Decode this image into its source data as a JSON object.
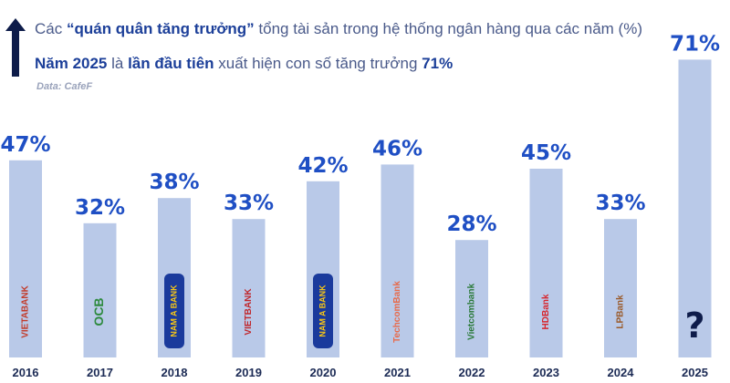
{
  "header": {
    "line1_prefix": "Các ",
    "line1_bold": "“quán quân tăng trưởng”",
    "line1_suffix": " tổng tài sản trong hệ thống ngân hàng qua các năm (%)",
    "line2_prefix": "Năm 2025",
    "line2_mid": " là ",
    "line2_bold": "lần đầu tiên",
    "line2_suffix": " xuất hiện con số tăng trưởng ",
    "line2_value": "71%",
    "source": "Data: CafeF"
  },
  "chart_data": {
    "type": "bar",
    "title": "Các “quán quân tăng trưởng” tổng tài sản trong hệ thống ngân hàng qua các năm (%)",
    "categories": [
      "2016",
      "2017",
      "2018",
      "2019",
      "2020",
      "2021",
      "2022",
      "2023",
      "2024",
      "2025"
    ],
    "values": [
      47,
      32,
      38,
      33,
      42,
      46,
      28,
      45,
      33,
      71
    ],
    "value_labels": [
      "47%",
      "32%",
      "38%",
      "33%",
      "42%",
      "46%",
      "28%",
      "45%",
      "33%",
      "71%"
    ],
    "banks": [
      "VIETABANK",
      "OCB",
      "NAM A BANK",
      "VIETBANK",
      "NAM A BANK",
      "TechcomBank",
      "Vietcombank",
      "HDBank",
      "LPBank",
      "?"
    ],
    "ylim": [
      0,
      75
    ],
    "grid": false,
    "legend": "none",
    "colors": {
      "bar": "#b9c9e8",
      "value_text": "#1f4fc4",
      "year_text": "#1c2b55",
      "title_text": "#4a5a8a"
    }
  }
}
